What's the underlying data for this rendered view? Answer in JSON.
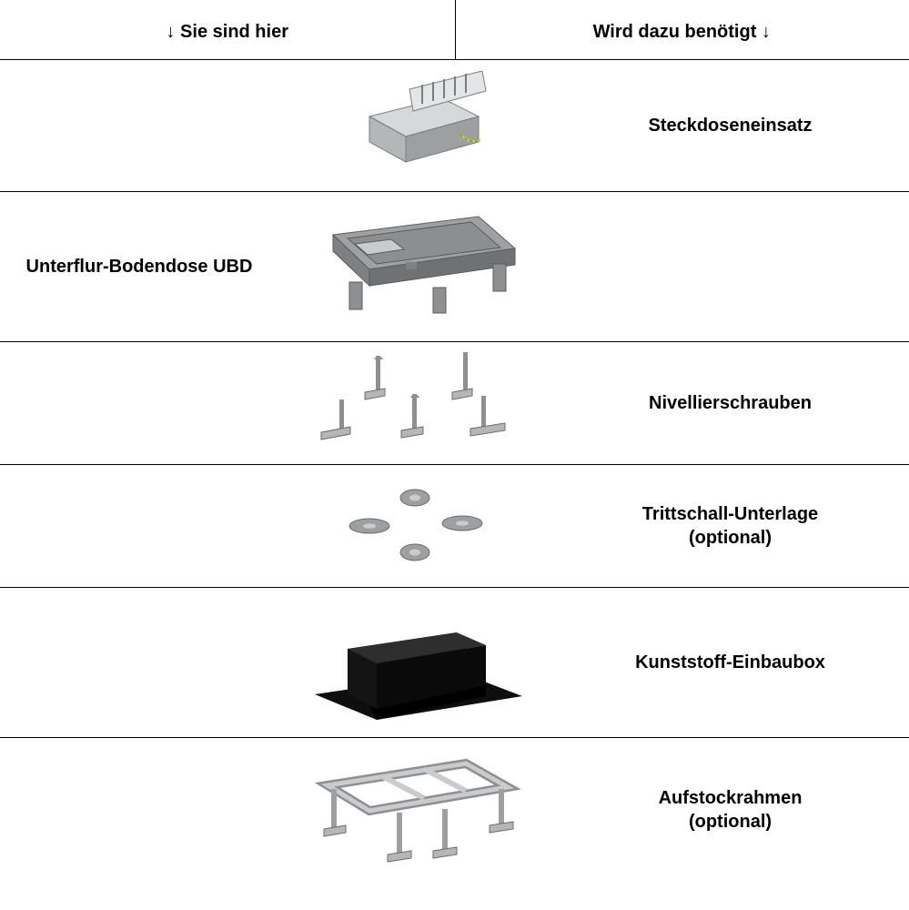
{
  "header": {
    "left": "↓ Sie sind hier",
    "right": "Wird dazu benötigt ↓"
  },
  "rows": [
    {
      "left": "",
      "right": "Steckdoseneinsatz",
      "icon": "socket-insert"
    },
    {
      "left": "Unterflur-Bodendose UBD",
      "right": "",
      "icon": "floor-box"
    },
    {
      "left": "",
      "right": "Nivellierschrauben",
      "icon": "leveling-screws"
    },
    {
      "left": "",
      "right": "Trittschall-Unterlage\n(optional)",
      "icon": "impact-pad"
    },
    {
      "left": "",
      "right": "Kunststoff-Einbaubox",
      "icon": "plastic-box"
    },
    {
      "left": "",
      "right": "Aufstockrahmen\n(optional)",
      "icon": "riser-frame"
    }
  ],
  "colors": {
    "steel": "#c9cbcc",
    "steel_dark": "#8d8f91",
    "grey_frame": "#7e8082",
    "grey_frame_light": "#9ea0a2",
    "black_box": "#111111",
    "black_box_top": "#2a2a2a",
    "outline": "#5a5c5e",
    "wire_yellow": "#d9c43a"
  }
}
